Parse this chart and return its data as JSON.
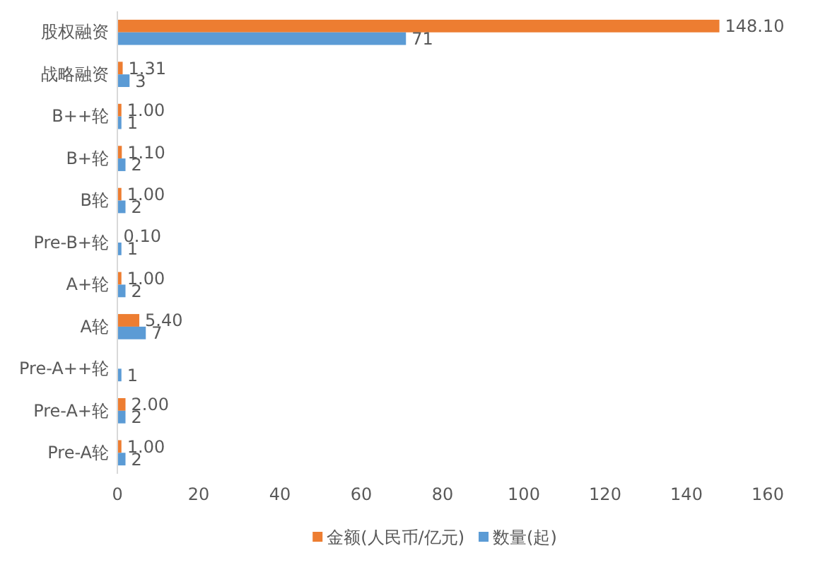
{
  "chart_data": {
    "type": "bar",
    "orientation": "horizontal",
    "categories": [
      "股权融资",
      "战略融资",
      "B++轮",
      "B+轮",
      "B轮",
      "Pre-B+轮",
      "A+轮",
      "A轮",
      "Pre-A++轮",
      "Pre-A+轮",
      "Pre-A轮"
    ],
    "series": [
      {
        "name": "金额(人民币/亿元)",
        "color": "#ed7d31",
        "values": [
          148.1,
          1.31,
          1.0,
          1.1,
          1.0,
          0.1,
          1.0,
          5.4,
          null,
          2.0,
          1.0
        ],
        "value_labels": [
          "148.10",
          "1.31",
          "1.00",
          "1.10",
          "1.00",
          "0.10",
          "1.00",
          "5.40",
          null,
          "2.00",
          "1.00"
        ]
      },
      {
        "name": "数量(起)",
        "color": "#5b9bd5",
        "values": [
          71,
          3,
          1,
          2,
          2,
          1,
          2,
          7,
          1,
          2,
          2
        ],
        "value_labels": [
          "71",
          "3",
          "1",
          "2",
          "2",
          "1",
          "2",
          "7",
          "1",
          "2",
          "2"
        ]
      }
    ],
    "xlim": [
      0,
      160
    ],
    "xticks": [
      0,
      20,
      40,
      60,
      80,
      100,
      120,
      140,
      160
    ],
    "legend": "bottom"
  }
}
